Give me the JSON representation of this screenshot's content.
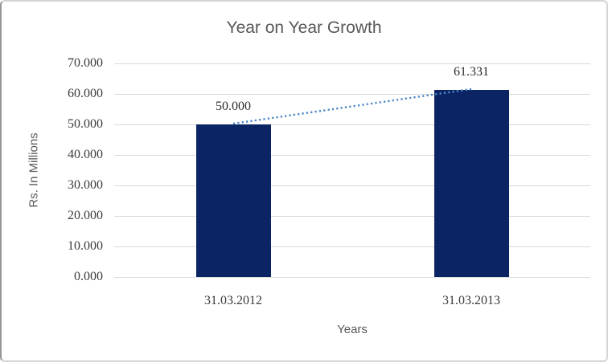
{
  "chart_data": {
    "type": "bar",
    "title": "Year on Year Growth",
    "xlabel": "Years",
    "ylabel": "Rs. In Millions",
    "categories": [
      "31.03.2012",
      "31.03.2013"
    ],
    "series": [
      {
        "name": "Year on Year Growth",
        "values": [
          50.0,
          61.331
        ],
        "value_labels": [
          "50.000",
          "61.331"
        ]
      }
    ],
    "ylim": [
      0,
      70
    ],
    "y_ticks": [
      {
        "value": 0,
        "label": "0.000"
      },
      {
        "value": 10,
        "label": "10.000"
      },
      {
        "value": 20,
        "label": "20.000"
      },
      {
        "value": 30,
        "label": "30.000"
      },
      {
        "value": 40,
        "label": "40.000"
      },
      {
        "value": 50,
        "label": "50.000"
      },
      {
        "value": 60,
        "label": "60.000"
      },
      {
        "value": 70,
        "label": "70.000"
      }
    ],
    "grid": true,
    "legend": "none",
    "trendline": {
      "style": "dotted",
      "connects": "bar-tops"
    },
    "colors": {
      "bar": "#0b2464",
      "trendline": "#4a86c8",
      "gridline": "#d9d9d9",
      "axis_line": "#d7d7d7",
      "title_text": "#595959",
      "tick_text": "#3a3a3a",
      "data_label_text": "#2a2a2a"
    }
  }
}
